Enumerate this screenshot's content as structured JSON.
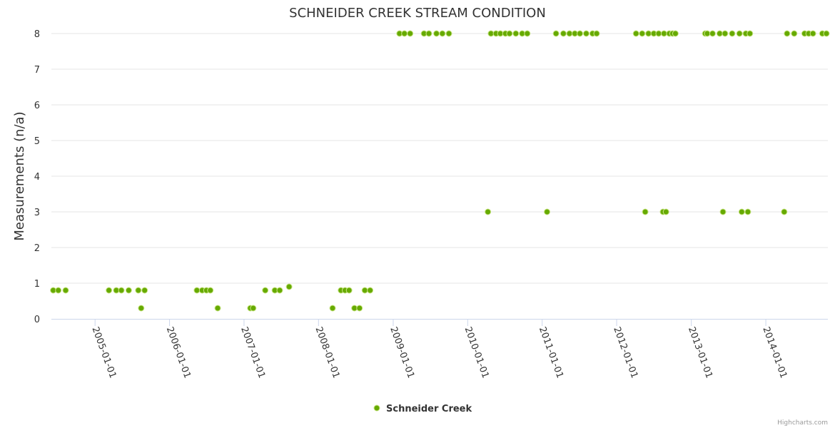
{
  "chart_data": {
    "type": "scatter",
    "title": "SCHNEIDER CREEK STREAM CONDITION",
    "xlabel": "",
    "ylabel": "Measurements (n/a)",
    "ylim": [
      0,
      8
    ],
    "yticks": [
      0,
      1,
      2,
      3,
      4,
      5,
      6,
      7,
      8
    ],
    "xlim": [
      "2004-06-01",
      "2014-11-01"
    ],
    "xticks": [
      "2005-01-01",
      "2006-01-01",
      "2007-01-01",
      "2008-01-01",
      "2009-01-01",
      "2010-01-01",
      "2011-01-01",
      "2012-01-01",
      "2013-01-01",
      "2014-01-01"
    ],
    "grid": true,
    "legend": "bottom-center",
    "colors": {
      "fill": "#66aa00",
      "stroke": "#cbe58a",
      "grid": "#e6e6e6",
      "axis": "#ccd6eb"
    },
    "series": [
      {
        "name": "Schneider Creek",
        "points": [
          [
            "2004-06-10",
            0.8
          ],
          [
            "2004-07-05",
            0.8
          ],
          [
            "2004-08-10",
            0.8
          ],
          [
            "2005-03-10",
            0.8
          ],
          [
            "2005-04-15",
            0.8
          ],
          [
            "2005-05-10",
            0.8
          ],
          [
            "2005-06-15",
            0.8
          ],
          [
            "2005-08-01",
            0.8
          ],
          [
            "2005-08-15",
            0.3
          ],
          [
            "2005-09-01",
            0.8
          ],
          [
            "2006-05-15",
            0.8
          ],
          [
            "2006-06-10",
            0.8
          ],
          [
            "2006-07-01",
            0.8
          ],
          [
            "2006-07-20",
            0.8
          ],
          [
            "2006-08-25",
            0.3
          ],
          [
            "2007-02-01",
            0.3
          ],
          [
            "2007-02-15",
            0.3
          ],
          [
            "2007-04-15",
            0.8
          ],
          [
            "2007-06-01",
            0.8
          ],
          [
            "2007-06-25",
            0.8
          ],
          [
            "2007-08-10",
            0.9
          ],
          [
            "2008-03-10",
            0.3
          ],
          [
            "2008-04-20",
            0.8
          ],
          [
            "2008-05-10",
            0.8
          ],
          [
            "2008-05-30",
            0.8
          ],
          [
            "2008-06-25",
            0.3
          ],
          [
            "2008-07-20",
            0.3
          ],
          [
            "2008-08-15",
            0.8
          ],
          [
            "2008-09-10",
            0.8
          ],
          [
            "2009-02-01",
            8
          ],
          [
            "2009-02-25",
            8
          ],
          [
            "2009-03-25",
            8
          ],
          [
            "2009-06-01",
            8
          ],
          [
            "2009-06-25",
            8
          ],
          [
            "2009-08-01",
            8
          ],
          [
            "2009-08-30",
            8
          ],
          [
            "2009-10-01",
            8
          ],
          [
            "2010-04-10",
            3
          ],
          [
            "2010-04-25",
            8
          ],
          [
            "2010-05-20",
            8
          ],
          [
            "2010-06-10",
            8
          ],
          [
            "2010-07-05",
            8
          ],
          [
            "2010-07-25",
            8
          ],
          [
            "2010-08-25",
            8
          ],
          [
            "2010-09-25",
            8
          ],
          [
            "2010-10-20",
            8
          ],
          [
            "2011-01-25",
            3
          ],
          [
            "2011-03-10",
            8
          ],
          [
            "2011-04-15",
            8
          ],
          [
            "2011-05-15",
            8
          ],
          [
            "2011-06-10",
            8
          ],
          [
            "2011-07-05",
            8
          ],
          [
            "2011-08-05",
            8
          ],
          [
            "2011-09-05",
            8
          ],
          [
            "2011-09-25",
            8
          ],
          [
            "2012-04-05",
            8
          ],
          [
            "2012-05-05",
            8
          ],
          [
            "2012-05-20",
            3
          ],
          [
            "2012-06-05",
            8
          ],
          [
            "2012-07-01",
            8
          ],
          [
            "2012-07-25",
            8
          ],
          [
            "2012-08-15",
            3
          ],
          [
            "2012-08-20",
            8
          ],
          [
            "2012-08-30",
            3
          ],
          [
            "2012-09-15",
            8
          ],
          [
            "2012-10-01",
            8
          ],
          [
            "2012-10-15",
            8
          ],
          [
            "2013-03-10",
            8
          ],
          [
            "2013-03-20",
            8
          ],
          [
            "2013-04-15",
            8
          ],
          [
            "2013-05-20",
            8
          ],
          [
            "2013-06-05",
            3
          ],
          [
            "2013-06-15",
            8
          ],
          [
            "2013-07-20",
            8
          ],
          [
            "2013-08-25",
            8
          ],
          [
            "2013-09-05",
            3
          ],
          [
            "2013-09-25",
            8
          ],
          [
            "2013-10-05",
            3
          ],
          [
            "2013-10-15",
            8
          ],
          [
            "2014-04-01",
            3
          ],
          [
            "2014-04-15",
            8
          ],
          [
            "2014-05-20",
            8
          ],
          [
            "2014-07-10",
            8
          ],
          [
            "2014-07-30",
            8
          ],
          [
            "2014-08-20",
            8
          ],
          [
            "2014-10-05",
            8
          ],
          [
            "2014-10-25",
            8
          ]
        ]
      }
    ]
  },
  "credits": "Highcharts.com"
}
